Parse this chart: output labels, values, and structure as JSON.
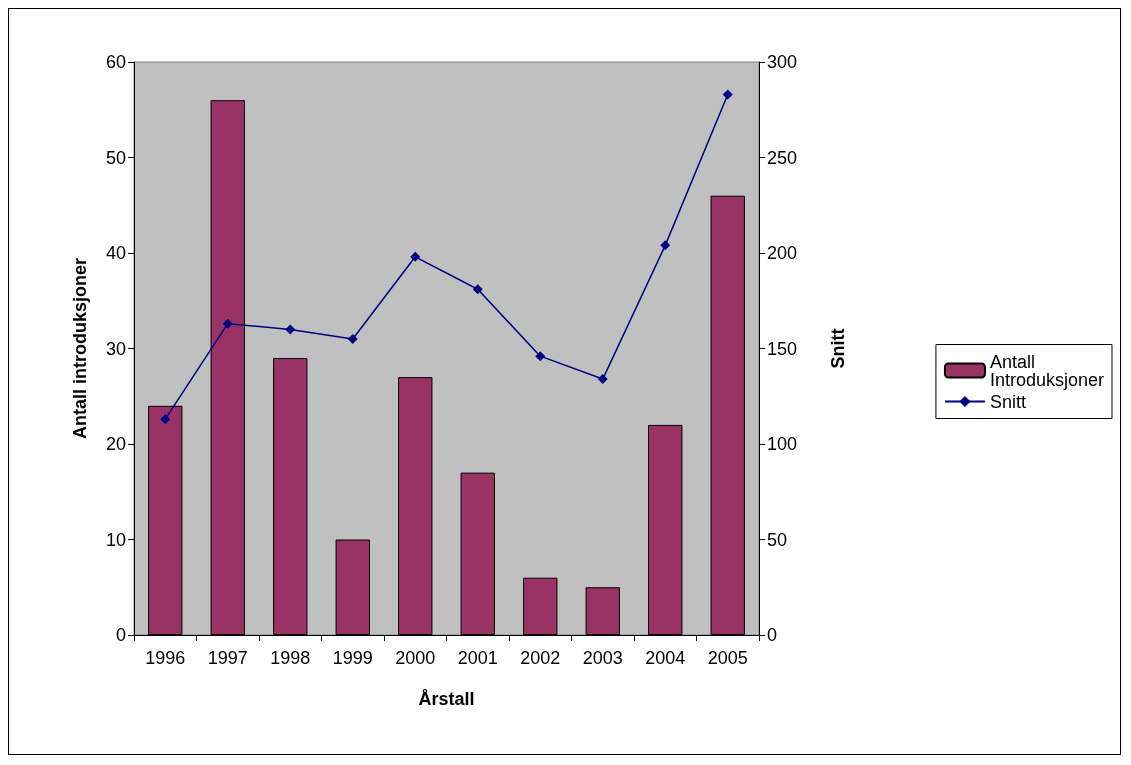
{
  "chart_data": {
    "type": "bar",
    "xlabel": "Årstall",
    "ylabel": "Antall introduksjoner",
    "y2label": "Snitt",
    "categories": [
      "1996",
      "1997",
      "1998",
      "1999",
      "2000",
      "2001",
      "2002",
      "2003",
      "2004",
      "2005"
    ],
    "series": [
      {
        "name": "Antall Introduksjoner",
        "color": "#993366",
        "values": [
          24,
          56,
          29,
          10,
          27,
          17,
          6,
          5,
          22,
          46
        ]
      },
      {
        "name": "Snitt",
        "type": "line",
        "axis": "y2",
        "color": "#000080",
        "marker": "diamond",
        "values": [
          113,
          163,
          160,
          155,
          198,
          181,
          146,
          134,
          204,
          283
        ]
      }
    ],
    "ylim": [
      0,
      60
    ],
    "yticks": [
      0,
      10,
      20,
      30,
      40,
      50,
      60
    ],
    "y2lim": [
      0,
      300
    ],
    "y2ticks": [
      0,
      50,
      100,
      150,
      200,
      250,
      300
    ],
    "grid": false,
    "legend": "right"
  }
}
